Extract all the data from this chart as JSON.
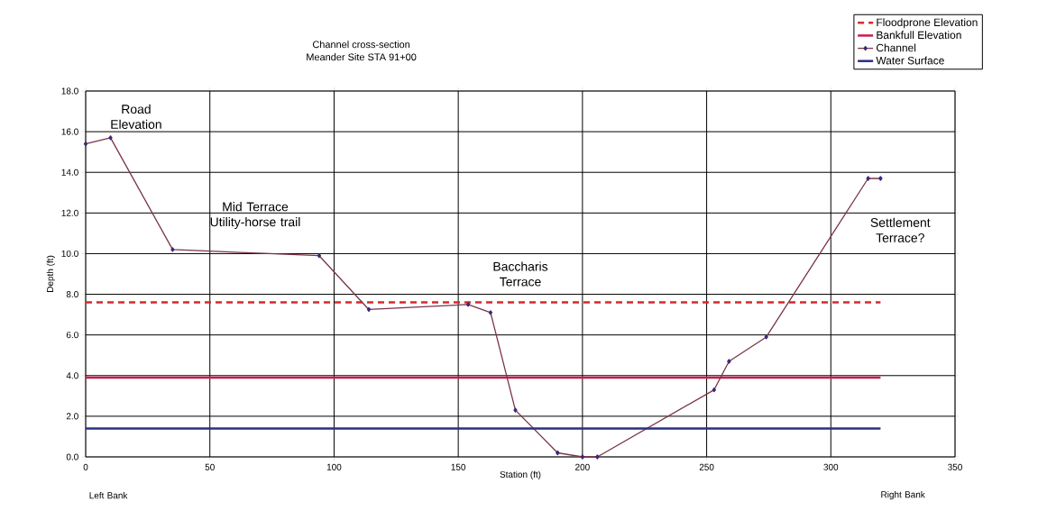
{
  "chart_data": {
    "type": "line",
    "title": "Channel cross-section",
    "subtitle": "Meander Site STA 91+00",
    "xlabel": "Station (ft)",
    "ylabel": "Depth (ft)",
    "series": [
      {
        "name": "Floodprone Elevation",
        "color": "#d42a2a",
        "line_style": "dashed",
        "marker": "none",
        "x": [
          0,
          320
        ],
        "values": [
          7.6,
          7.6
        ]
      },
      {
        "name": "Bankfull Elevation",
        "color": "#c81e4c",
        "line_style": "solid",
        "marker": "none",
        "x": [
          0,
          320
        ],
        "values": [
          3.9,
          3.9
        ]
      },
      {
        "name": "Channel",
        "color": "#7a3448",
        "line_style": "solid",
        "marker": "diamond",
        "x": [
          0,
          10,
          35,
          94,
          114,
          154,
          163,
          173,
          190,
          200,
          206,
          253,
          259,
          274,
          315,
          320
        ],
        "values": [
          15.4,
          15.7,
          10.2,
          9.9,
          7.25,
          7.5,
          7.1,
          2.3,
          0.2,
          0.0,
          0.0,
          3.3,
          4.7,
          5.9,
          13.7,
          13.7
        ]
      },
      {
        "name": "Water Surface",
        "color": "#2a2f86",
        "line_style": "solid",
        "marker": "none",
        "x": [
          0,
          320
        ],
        "values": [
          1.4,
          1.4
        ]
      }
    ],
    "xlim": [
      0,
      350
    ],
    "xticks": [
      0,
      50,
      100,
      150,
      200,
      250,
      300,
      350
    ],
    "ylim": [
      0,
      18
    ],
    "yticks": [
      {
        "value": 0,
        "label": "0.0"
      },
      {
        "value": 2,
        "label": "2.0"
      },
      {
        "value": 4,
        "label": "4.0"
      },
      {
        "value": 6,
        "label": "6.0"
      },
      {
        "value": 8,
        "label": "8.0"
      },
      {
        "value": 10,
        "label": "10.0"
      },
      {
        "value": 12,
        "label": "12.0"
      },
      {
        "value": 14,
        "label": "14.0"
      },
      {
        "value": 16,
        "label": "16.0"
      },
      {
        "value": 18,
        "label": "18.0"
      }
    ],
    "grid": true,
    "legend": "top right",
    "annotations": [
      "Road Elevation",
      "Mid Terrace Utility-horse trail",
      "Baccharis Terrace",
      "Settlement Terrace?",
      "Left Bank",
      "Right Bank"
    ]
  }
}
